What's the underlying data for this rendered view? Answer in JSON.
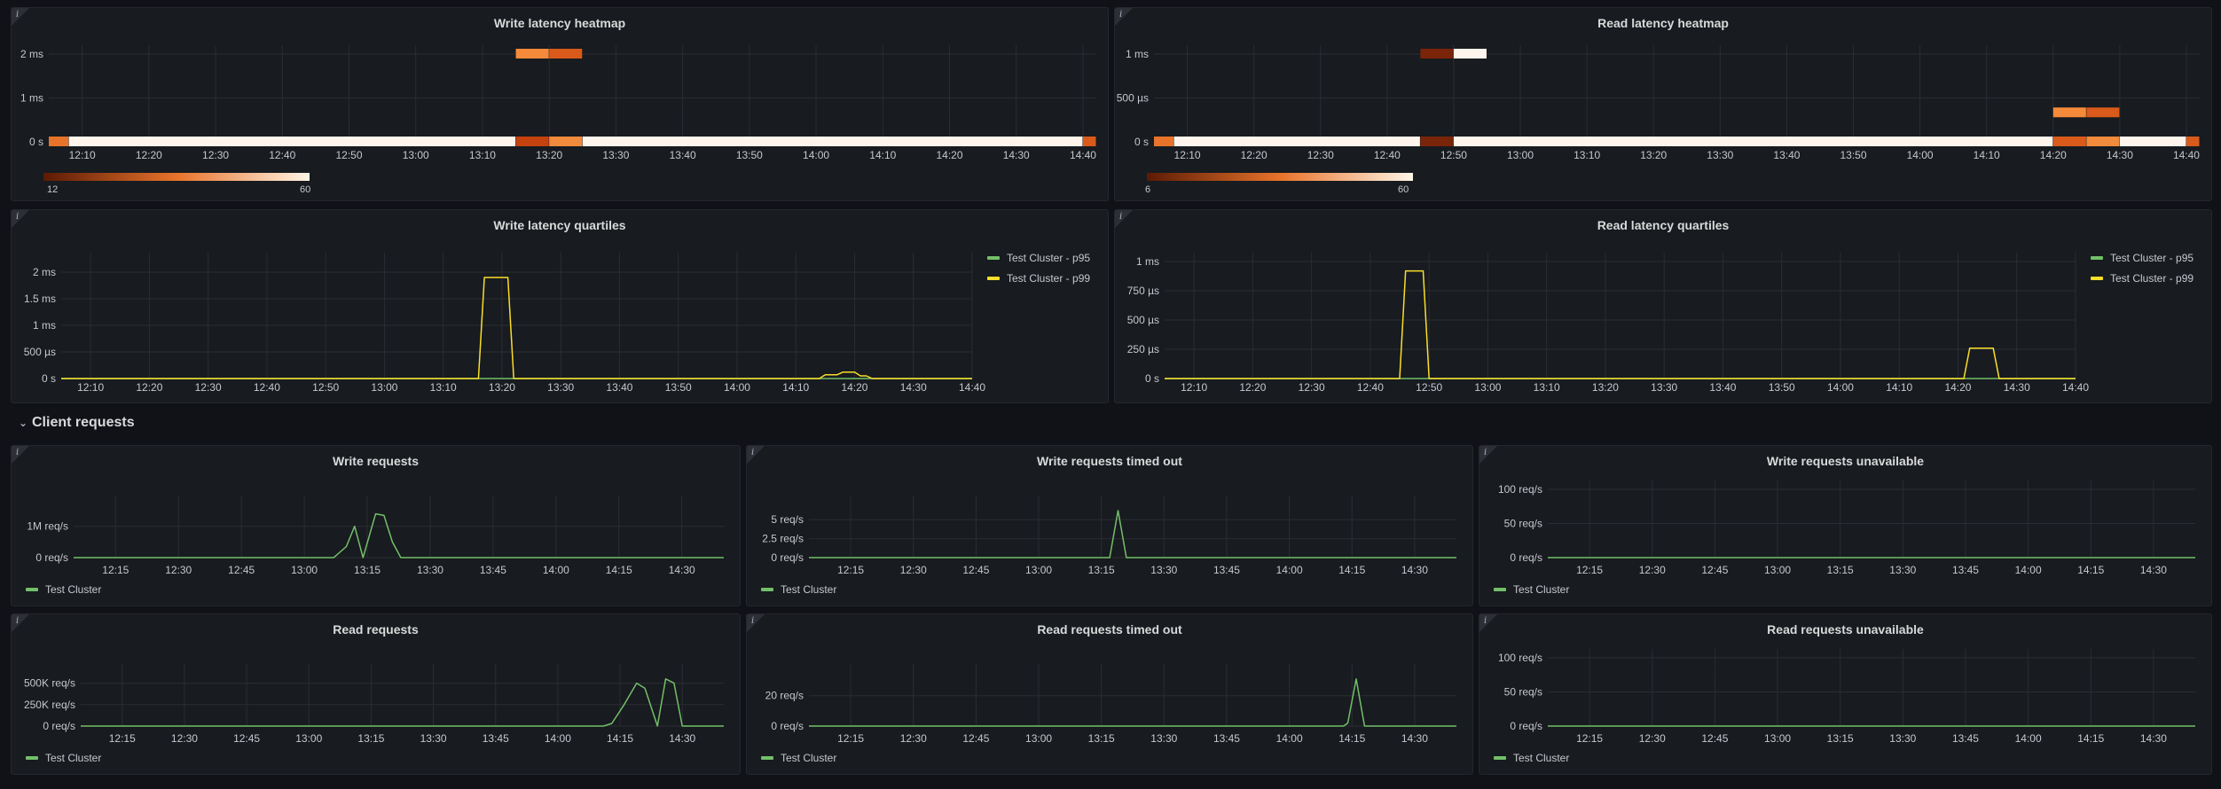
{
  "panels": {
    "write_heatmap": {
      "title": "Write latency heatmap",
      "scale_min": "12",
      "scale_max": "60"
    },
    "read_heatmap": {
      "title": "Read latency heatmap",
      "scale_min": "6",
      "scale_max": "60"
    },
    "write_quartiles": {
      "title": "Write latency quartiles"
    },
    "read_quartiles": {
      "title": "Read latency quartiles"
    },
    "write_requests": {
      "title": "Write requests"
    },
    "write_timed_out": {
      "title": "Write requests timed out"
    },
    "write_unavailable": {
      "title": "Write requests unavailable"
    },
    "read_requests": {
      "title": "Read requests"
    },
    "read_timed_out": {
      "title": "Read requests timed out"
    },
    "read_unavailable": {
      "title": "Read requests unavailable"
    }
  },
  "section": {
    "client_requests": "Client requests"
  },
  "info_glyph": "i",
  "colors": {
    "background": "#111217",
    "panel": "#181b1f",
    "green": "#73bf69",
    "yellow": "#fade2a",
    "heat_low": "#5b1a05",
    "heat_high": "#fff5e6"
  },
  "chart_data": [
    {
      "id": "write_heatmap",
      "type": "heatmap",
      "x_ticks": [
        "12:10",
        "12:20",
        "12:30",
        "12:40",
        "12:50",
        "13:00",
        "13:10",
        "13:20",
        "13:30",
        "13:40",
        "13:50",
        "14:00",
        "14:10",
        "14:20",
        "14:30",
        "14:40"
      ],
      "y_ticks": [
        "0 s",
        "1 ms",
        "2 ms"
      ],
      "cells": [
        {
          "row": "0 s",
          "from": "12:05",
          "to": "12:08",
          "color": "#e8732a"
        },
        {
          "row": "0 s",
          "from": "12:08",
          "to": "13:15",
          "color": "#fff5ec"
        },
        {
          "row": "0 s",
          "from": "13:15",
          "to": "13:20",
          "color": "#c4420e"
        },
        {
          "row": "0 s",
          "from": "13:20",
          "to": "13:25",
          "color": "#f08a3c"
        },
        {
          "row": "0 s",
          "from": "13:25",
          "to": "14:40",
          "color": "#fff5ec"
        },
        {
          "row": "0 s",
          "from": "14:40",
          "to": "14:42",
          "color": "#d95a1a"
        },
        {
          "row": "2 ms",
          "from": "13:15",
          "to": "13:20",
          "color": "#f58a3a"
        },
        {
          "row": "2 ms",
          "from": "13:20",
          "to": "13:25",
          "color": "#d95a1a"
        }
      ],
      "legend_range": [
        12,
        60
      ]
    },
    {
      "id": "read_heatmap",
      "type": "heatmap",
      "x_ticks": [
        "12:10",
        "12:20",
        "12:30",
        "12:40",
        "12:50",
        "13:00",
        "13:10",
        "13:20",
        "13:30",
        "13:40",
        "13:50",
        "14:00",
        "14:10",
        "14:20",
        "14:30",
        "14:40"
      ],
      "y_ticks": [
        "0 s",
        "500 µs",
        "1 ms"
      ],
      "cells": [
        {
          "row": "0 s",
          "from": "12:05",
          "to": "12:08",
          "color": "#e8732a"
        },
        {
          "row": "0 s",
          "from": "12:08",
          "to": "12:45",
          "color": "#fff5ec"
        },
        {
          "row": "0 s",
          "from": "12:45",
          "to": "12:50",
          "color": "#7a2409"
        },
        {
          "row": "0 s",
          "from": "12:50",
          "to": "14:20",
          "color": "#fff5ec"
        },
        {
          "row": "0 s",
          "from": "14:20",
          "to": "14:25",
          "color": "#d95a1a"
        },
        {
          "row": "0 s",
          "from": "14:25",
          "to": "14:30",
          "color": "#f08a3c"
        },
        {
          "row": "0 s",
          "from": "14:30",
          "to": "14:40",
          "color": "#fff5ec"
        },
        {
          "row": "0 s",
          "from": "14:40",
          "to": "14:42",
          "color": "#d95a1a"
        },
        {
          "row": "1 ms",
          "from": "12:45",
          "to": "12:50",
          "color": "#7a2409"
        },
        {
          "row": "1 ms",
          "from": "12:50",
          "to": "12:55",
          "color": "#fff5ec"
        },
        {
          "row": "250 µs",
          "from": "14:20",
          "to": "14:25",
          "color": "#f58a3a"
        },
        {
          "row": "250 µs",
          "from": "14:25",
          "to": "14:30",
          "color": "#d95a1a"
        }
      ],
      "legend_range": [
        6,
        60
      ]
    },
    {
      "id": "write_quartiles",
      "type": "line",
      "x_ticks": [
        "12:10",
        "12:20",
        "12:30",
        "12:40",
        "12:50",
        "13:00",
        "13:10",
        "13:20",
        "13:30",
        "13:40",
        "13:50",
        "14:00",
        "14:10",
        "14:20",
        "14:30",
        "14:40"
      ],
      "y_ticks": [
        "0 s",
        "500 µs",
        "1 ms",
        "1.5 ms",
        "2 ms"
      ],
      "ylim_ms": [
        0,
        2.2
      ],
      "series": [
        {
          "name": "Test Cluster - p95",
          "color": "#73bf69",
          "points": [
            [
              "12:05",
              0
            ],
            [
              "14:40",
              0
            ]
          ]
        },
        {
          "name": "Test Cluster - p99",
          "color": "#fade2a",
          "points": [
            [
              "12:05",
              0
            ],
            [
              "13:16",
              0
            ],
            [
              "13:17",
              1.9
            ],
            [
              "13:21",
              1.9
            ],
            [
              "13:22",
              0
            ],
            [
              "14:14",
              0
            ],
            [
              "14:15",
              0.07
            ],
            [
              "14:17",
              0.07
            ],
            [
              "14:18",
              0.12
            ],
            [
              "14:20",
              0.12
            ],
            [
              "14:21",
              0.05
            ],
            [
              "14:22",
              0.05
            ],
            [
              "14:23",
              0
            ],
            [
              "14:40",
              0
            ]
          ]
        }
      ]
    },
    {
      "id": "read_quartiles",
      "type": "line",
      "x_ticks": [
        "12:10",
        "12:20",
        "12:30",
        "12:40",
        "12:50",
        "13:00",
        "13:10",
        "13:20",
        "13:30",
        "13:40",
        "13:50",
        "14:00",
        "14:10",
        "14:20",
        "14:30",
        "14:40"
      ],
      "y_ticks": [
        "0 s",
        "250 µs",
        "500 µs",
        "750 µs",
        "1 ms"
      ],
      "ylim_us": [
        0,
        1000
      ],
      "series": [
        {
          "name": "Test Cluster - p95",
          "color": "#73bf69",
          "points": [
            [
              "12:05",
              0
            ],
            [
              "14:40",
              0
            ]
          ]
        },
        {
          "name": "Test Cluster - p99",
          "color": "#fade2a",
          "points": [
            [
              "12:05",
              0
            ],
            [
              "12:45",
              0
            ],
            [
              "12:46",
              920
            ],
            [
              "12:49",
              920
            ],
            [
              "12:50",
              0
            ],
            [
              "14:21",
              0
            ],
            [
              "14:22",
              260
            ],
            [
              "14:26",
              260
            ],
            [
              "14:27",
              0
            ],
            [
              "14:40",
              0
            ]
          ]
        }
      ]
    },
    {
      "id": "write_requests",
      "type": "line",
      "x_ticks": [
        "12:15",
        "12:30",
        "12:45",
        "13:00",
        "13:15",
        "13:30",
        "13:45",
        "14:00",
        "14:15",
        "14:30"
      ],
      "y_ticks": [
        "0 req/s",
        "1M req/s"
      ],
      "ylim": [
        0,
        1700000
      ],
      "series": [
        {
          "name": "Test Cluster",
          "color": "#73bf69",
          "points": [
            [
              "12:05",
              0
            ],
            [
              "13:07",
              0
            ],
            [
              "13:10",
              350000
            ],
            [
              "13:12",
              1000000
            ],
            [
              "13:14",
              0
            ],
            [
              "13:17",
              1400000
            ],
            [
              "13:19",
              1350000
            ],
            [
              "13:21",
              500000
            ],
            [
              "13:23",
              0
            ],
            [
              "14:40",
              0
            ]
          ]
        }
      ]
    },
    {
      "id": "write_timed_out",
      "type": "line",
      "x_ticks": [
        "12:15",
        "12:30",
        "12:45",
        "13:00",
        "13:15",
        "13:30",
        "13:45",
        "14:00",
        "14:15",
        "14:30"
      ],
      "y_ticks": [
        "0 req/s",
        "2.5 req/s",
        "5 req/s"
      ],
      "ylim": [
        0,
        7
      ],
      "series": [
        {
          "name": "Test Cluster",
          "color": "#73bf69",
          "points": [
            [
              "12:05",
              0
            ],
            [
              "13:17",
              0
            ],
            [
              "13:19",
              6.2
            ],
            [
              "13:21",
              0
            ],
            [
              "14:40",
              0
            ]
          ]
        }
      ]
    },
    {
      "id": "write_unavailable",
      "type": "line",
      "x_ticks": [
        "12:15",
        "12:30",
        "12:45",
        "13:00",
        "13:15",
        "13:30",
        "13:45",
        "14:00",
        "14:15",
        "14:30"
      ],
      "y_ticks": [
        "0 req/s",
        "50 req/s",
        "100 req/s"
      ],
      "ylim": [
        0,
        100
      ],
      "series": [
        {
          "name": "Test Cluster",
          "color": "#73bf69",
          "points": [
            [
              "12:05",
              0
            ],
            [
              "14:40",
              0
            ]
          ]
        }
      ]
    },
    {
      "id": "read_requests",
      "type": "line",
      "x_ticks": [
        "12:15",
        "12:30",
        "12:45",
        "13:00",
        "13:15",
        "13:30",
        "13:45",
        "14:00",
        "14:15",
        "14:30"
      ],
      "y_ticks": [
        "0 req/s",
        "250K req/s",
        "500K req/s"
      ],
      "ylim": [
        0,
        620000
      ],
      "series": [
        {
          "name": "Test Cluster",
          "color": "#73bf69",
          "points": [
            [
              "12:05",
              0
            ],
            [
              "14:11",
              0
            ],
            [
              "14:13",
              30000
            ],
            [
              "14:16",
              250000
            ],
            [
              "14:19",
              500000
            ],
            [
              "14:21",
              440000
            ],
            [
              "14:24",
              0
            ],
            [
              "14:26",
              550000
            ],
            [
              "14:28",
              500000
            ],
            [
              "14:30",
              0
            ],
            [
              "14:40",
              0
            ]
          ]
        }
      ]
    },
    {
      "id": "read_timed_out",
      "type": "line",
      "x_ticks": [
        "12:15",
        "12:30",
        "12:45",
        "13:00",
        "13:15",
        "13:30",
        "13:45",
        "14:00",
        "14:15",
        "14:30"
      ],
      "y_ticks": [
        "0 req/s",
        "20 req/s"
      ],
      "ylim": [
        0,
        35
      ],
      "series": [
        {
          "name": "Test Cluster",
          "color": "#73bf69",
          "points": [
            [
              "12:05",
              0
            ],
            [
              "14:13",
              0
            ],
            [
              "14:14",
              2
            ],
            [
              "14:16",
              31
            ],
            [
              "14:18",
              0
            ],
            [
              "14:40",
              0
            ]
          ]
        }
      ]
    },
    {
      "id": "read_unavailable",
      "type": "line",
      "x_ticks": [
        "12:15",
        "12:30",
        "12:45",
        "13:00",
        "13:15",
        "13:30",
        "13:45",
        "14:00",
        "14:15",
        "14:30"
      ],
      "y_ticks": [
        "0 req/s",
        "50 req/s",
        "100 req/s"
      ],
      "ylim": [
        0,
        100
      ],
      "series": [
        {
          "name": "Test Cluster",
          "color": "#73bf69",
          "points": [
            [
              "12:05",
              0
            ],
            [
              "14:40",
              0
            ]
          ]
        }
      ]
    }
  ]
}
